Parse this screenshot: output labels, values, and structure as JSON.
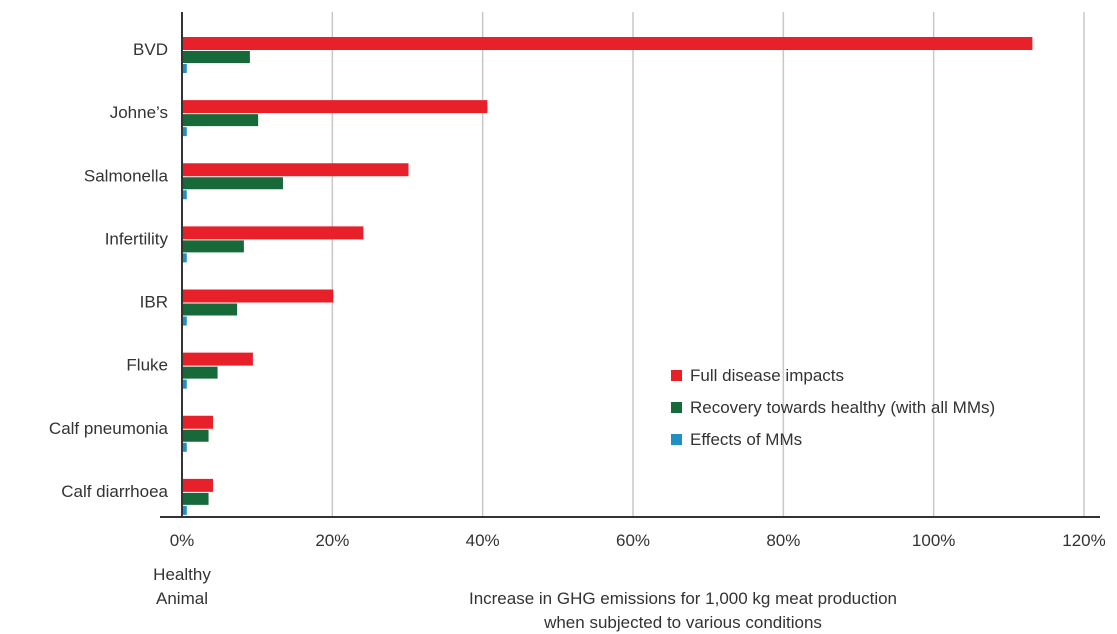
{
  "chart_data": {
    "type": "bar",
    "orientation": "horizontal",
    "categories": [
      "BVD",
      "Johne’s",
      "Salmonella",
      "Infertility",
      "IBR",
      "Fluke",
      "Calf pneumonia",
      "Calf diarrhoea"
    ],
    "series": [
      {
        "name": "Full disease impacts",
        "color": "#e8202a",
        "values": [
          113,
          40.5,
          30,
          24,
          20,
          9.3,
          4,
          4
        ]
      },
      {
        "name": "Recovery towards healthy (with all MMs)",
        "color": "#17693a",
        "values": [
          8.9,
          10,
          13.3,
          8.1,
          7.2,
          4.6,
          3.4,
          3.4
        ]
      },
      {
        "name": "Effects of MMs",
        "color": "#1f8fc4",
        "values": [
          0.5,
          0.5,
          0.5,
          0.5,
          0.5,
          0.5,
          0.5,
          0.5
        ]
      }
    ],
    "xlim": [
      0,
      120
    ],
    "x_ticks": [
      "0%",
      "20%",
      "40%",
      "60%",
      "80%",
      "100%",
      "120%"
    ],
    "x_origin_label": "Healthy\nAnimal",
    "xlabel": "Increase in GHG emissions for 1,000 kg meat production\nwhen subjected to various conditions",
    "ylabel": "",
    "grid": "vertical",
    "legend_position": "bottom-right"
  }
}
